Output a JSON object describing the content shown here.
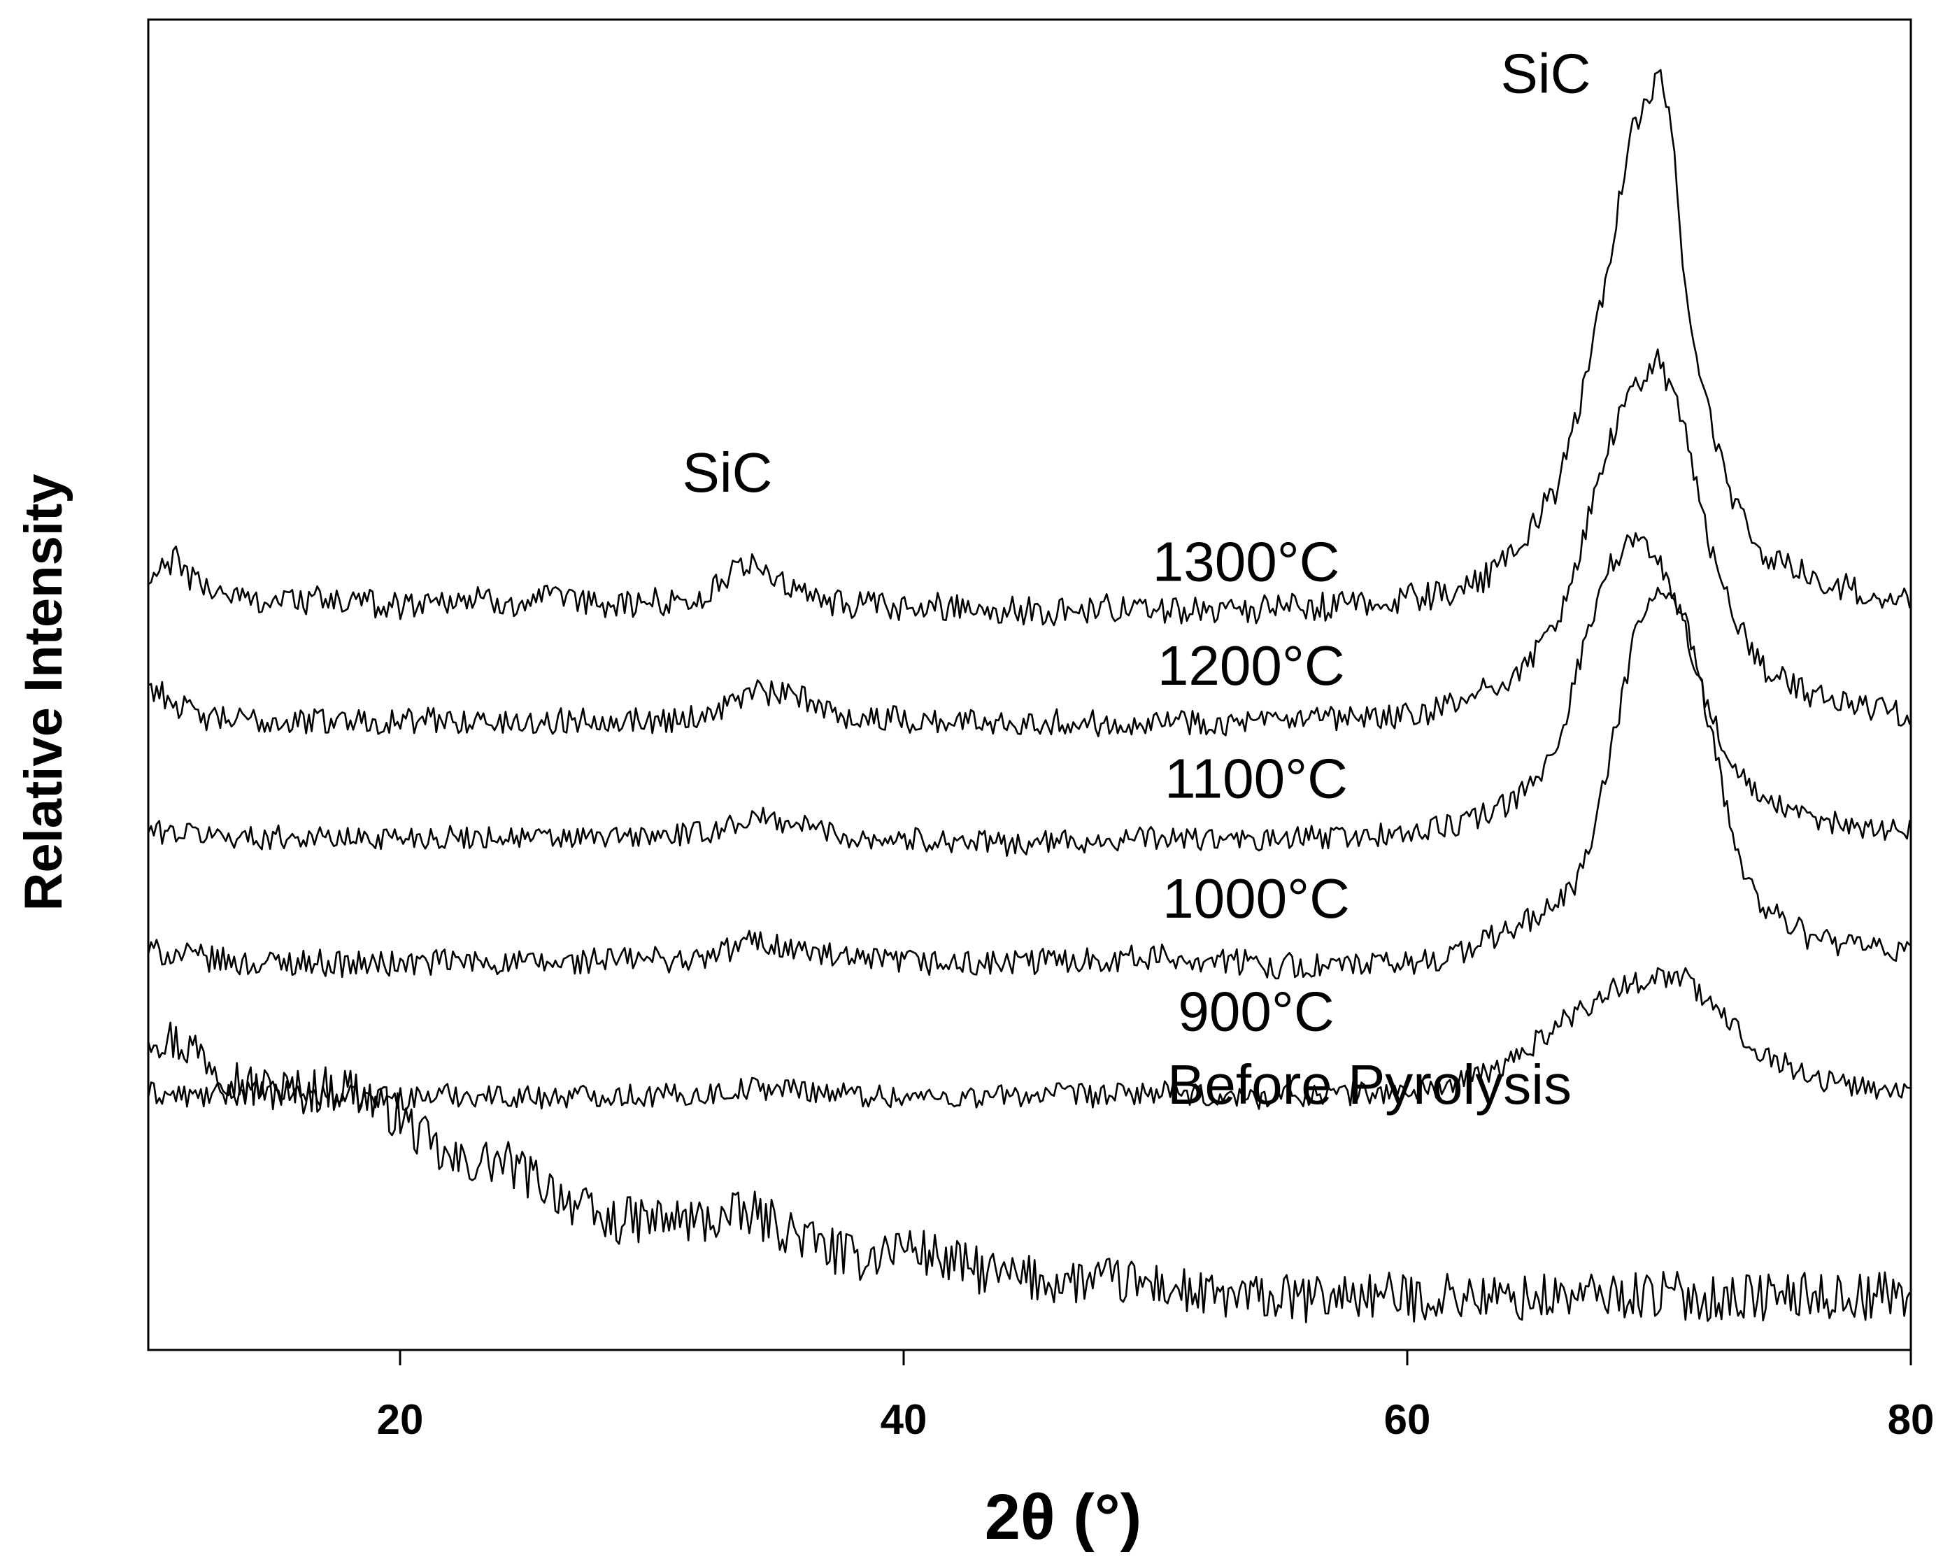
{
  "chart_data": {
    "type": "line",
    "title": "",
    "xlabel": "2θ (°)",
    "ylabel": "Relative Intensity",
    "xlim": [
      10,
      80
    ],
    "ylim": [
      0,
      100
    ],
    "xticks": [
      20,
      40,
      60,
      80
    ],
    "xtick_labels": [
      "20",
      "40",
      "60",
      "80"
    ],
    "y_tick_labels_shown": false,
    "grid": false,
    "legend": "none",
    "series": [
      {
        "name": "Before Pyrolysis",
        "label": "Before Pyrolysis",
        "x": [
          10,
          12,
          14,
          16,
          18,
          20,
          22,
          24,
          26,
          28,
          30,
          32,
          34,
          36,
          38,
          40,
          42,
          44,
          46,
          48,
          50,
          52,
          54,
          56,
          58,
          60,
          62,
          64,
          66,
          68,
          70,
          72,
          74,
          76,
          78,
          80
        ],
        "y": [
          24,
          22.5,
          19.8,
          19.4,
          19.8,
          17.5,
          14,
          14.2,
          12.2,
          9.6,
          9.8,
          9.7,
          10.2,
          8.5,
          6.8,
          7.9,
          6.5,
          5.5,
          5.2,
          5.2,
          4.9,
          4.0,
          3.9,
          3.8,
          4.2,
          3.9,
          4.1,
          3.8,
          4.0,
          4.1,
          4.2,
          3.9,
          4.0,
          4.1,
          4.0,
          4.3
        ],
        "noise": 1.8
      },
      {
        "name": "900°C",
        "label": "900°C",
        "x": [
          10,
          12,
          14,
          16,
          18,
          20,
          22,
          24,
          26,
          28,
          30,
          32,
          34,
          36,
          38,
          40,
          42,
          44,
          46,
          48,
          50,
          52,
          54,
          56,
          58,
          60,
          62,
          64,
          66,
          68,
          70,
          71,
          72,
          74,
          76,
          78,
          80
        ],
        "y": [
          19.3,
          19.0,
          19.4,
          19.3,
          19.0,
          18.9,
          19.2,
          19.1,
          19.0,
          19.2,
          19.1,
          19.2,
          19.7,
          19.6,
          19.2,
          19.0,
          19.0,
          19.1,
          19.2,
          19.1,
          19.4,
          19.0,
          19.0,
          19.2,
          19.3,
          19.4,
          20.0,
          21.5,
          24.5,
          27.0,
          28.2,
          28.0,
          26.0,
          22.5,
          20.5,
          19.8,
          19.4
        ],
        "noise": 0.9
      },
      {
        "name": "1000°C",
        "label": "1000°C",
        "x": [
          10,
          12,
          14,
          16,
          18,
          20,
          22,
          24,
          26,
          28,
          30,
          32,
          34,
          36,
          38,
          40,
          42,
          44,
          46,
          48,
          50,
          52,
          54,
          56,
          58,
          60,
          62,
          64,
          66,
          67,
          68,
          69,
          70,
          71,
          72,
          73,
          74,
          76,
          78,
          80
        ],
        "y": [
          30.0,
          29.5,
          29.0,
          29.2,
          29.0,
          29.0,
          29.2,
          29.1,
          29.0,
          29.3,
          29.4,
          29.3,
          30.8,
          30.0,
          29.2,
          29.2,
          29.0,
          29.0,
          29.3,
          29.4,
          29.5,
          29.4,
          29.0,
          28.8,
          28.9,
          29.0,
          29.8,
          31.5,
          33.5,
          36.0,
          44.0,
          53.5,
          57.5,
          55.0,
          47.0,
          38.0,
          33.5,
          31.0,
          30.2,
          29.8
        ],
        "noise": 1.0
      },
      {
        "name": "1100°C",
        "label": "1100°C",
        "x": [
          10,
          12,
          14,
          16,
          18,
          20,
          22,
          24,
          26,
          28,
          30,
          32,
          34,
          36,
          38,
          40,
          42,
          44,
          46,
          48,
          50,
          52,
          54,
          56,
          58,
          60,
          62,
          64,
          65,
          66,
          67,
          68,
          69,
          70,
          71,
          72,
          73,
          74,
          76,
          78,
          80
        ],
        "y": [
          39.0,
          38.8,
          38.5,
          38.6,
          38.4,
          38.6,
          38.5,
          38.6,
          38.4,
          38.5,
          38.6,
          38.8,
          40.0,
          39.5,
          38.5,
          38.4,
          38.3,
          38.0,
          38.2,
          38.3,
          38.5,
          38.4,
          38.2,
          38.5,
          38.6,
          38.8,
          39.5,
          41.0,
          42.5,
          45.5,
          53.0,
          59.0,
          61.0,
          59.5,
          54.5,
          48.0,
          43.5,
          41.5,
          39.8,
          39.4,
          39.0
        ],
        "noise": 0.9
      },
      {
        "name": "1200°C",
        "label": "1200°C",
        "x": [
          10,
          12,
          14,
          16,
          18,
          20,
          22,
          24,
          26,
          28,
          30,
          32,
          34,
          36,
          38,
          40,
          42,
          44,
          46,
          48,
          50,
          52,
          54,
          56,
          58,
          60,
          62,
          64,
          65,
          66,
          67,
          68,
          69,
          70,
          71,
          72,
          73,
          74,
          76,
          78,
          80
        ],
        "y": [
          50.0,
          47.5,
          47.3,
          47.2,
          47.4,
          47.2,
          47.4,
          47.1,
          47.2,
          47.5,
          47.3,
          47.6,
          49.5,
          49.0,
          47.5,
          47.4,
          47.2,
          47.3,
          47.2,
          47.1,
          47.4,
          47.2,
          47.1,
          47.3,
          47.4,
          47.6,
          48.5,
          50.5,
          52.0,
          55.0,
          61.0,
          68.0,
          72.5,
          74.5,
          69.5,
          60.5,
          55.0,
          51.5,
          49.2,
          48.4,
          47.8
        ],
        "noise": 1.0
      },
      {
        "name": "1300°C",
        "label": "1300°C",
        "x": [
          10,
          11,
          12,
          14,
          16,
          18,
          20,
          22,
          24,
          26,
          28,
          30,
          32,
          33,
          34,
          35,
          36,
          38,
          40,
          42,
          44,
          46,
          48,
          50,
          52,
          54,
          56,
          58,
          60,
          62,
          63,
          64,
          65,
          66,
          67,
          68,
          69,
          70,
          70.5,
          71,
          72,
          73,
          74,
          76,
          78,
          80
        ],
        "y": [
          57.5,
          59.5,
          57.5,
          56.4,
          56.4,
          56.2,
          56.0,
          56.5,
          56.2,
          56.4,
          56.0,
          56.2,
          56.5,
          58.0,
          59.5,
          57.8,
          56.6,
          56.0,
          55.6,
          56.0,
          55.6,
          55.5,
          55.8,
          55.6,
          55.8,
          55.6,
          55.8,
          56.0,
          56.5,
          57.0,
          58.0,
          59.5,
          62.0,
          65.0,
          72.0,
          82.0,
          92.0,
          96.0,
          92.0,
          80.0,
          70.0,
          63.5,
          60.0,
          58.0,
          57.0,
          56.3
        ],
        "noise": 1.1
      }
    ],
    "annotations": [
      {
        "text": "SiC",
        "x": 33.0,
        "y": 64.5
      },
      {
        "text": "SiC",
        "x": 65.5,
        "y": 94.5
      }
    ]
  }
}
